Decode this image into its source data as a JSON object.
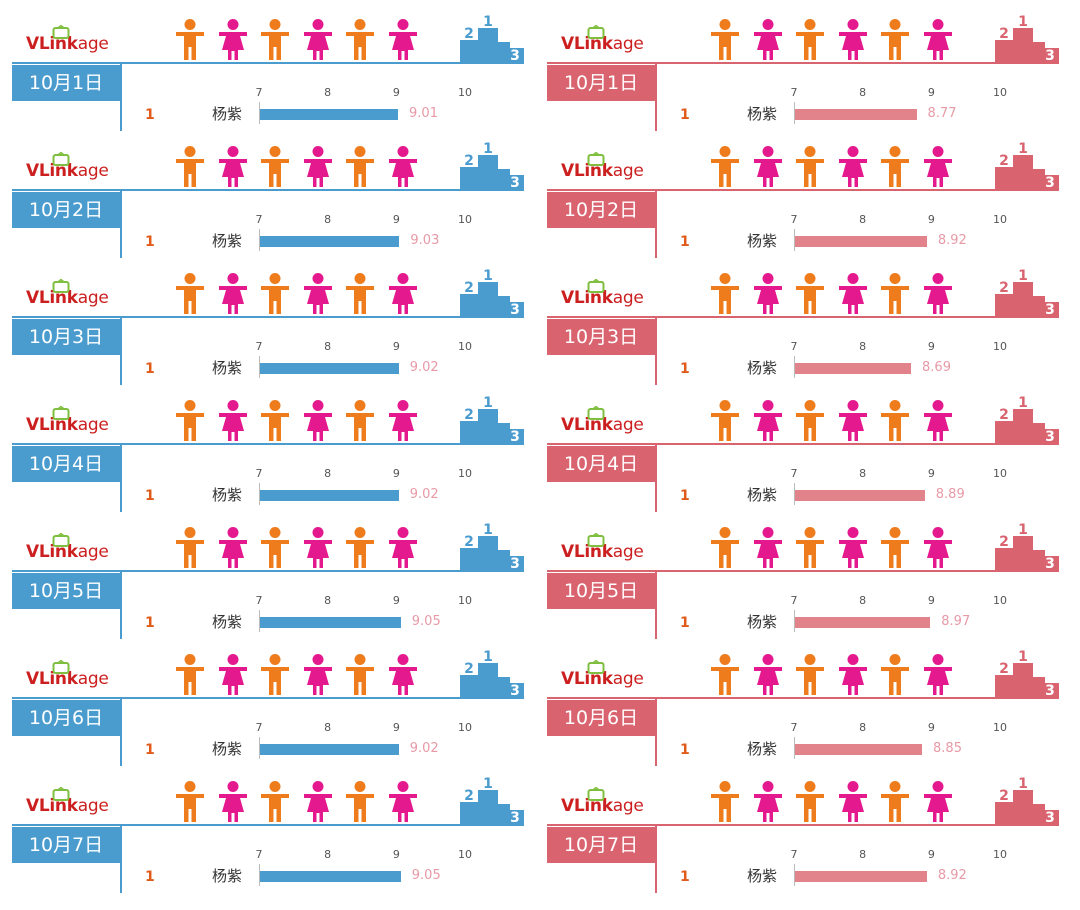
{
  "brand": {
    "logo_text": "VLinkage",
    "logo_text_part1": "VLink",
    "logo_text_part2": "age"
  },
  "colors": {
    "left_accent": "#4a9ccf",
    "right_accent": "#d9646f",
    "right_bar": "#e2838c",
    "man": "#ee7c1c",
    "woman": "#e5198e",
    "logo_red": "#cc1f1f",
    "logo_green": "#7fbf3f",
    "value_text": "#e79aa6"
  },
  "icons": {
    "people": [
      "man-icon",
      "woman-icon",
      "man-icon",
      "woman-icon",
      "man-icon",
      "woman-icon"
    ],
    "podium": "podium-icon",
    "logo_badge": "tv-icon"
  },
  "chart_data": [
    {
      "type": "bar",
      "theme": "blue",
      "xlim": [
        7,
        10
      ],
      "xticks": [
        "7",
        "8",
        "9",
        "10"
      ],
      "panels": [
        {
          "date": "10月1日",
          "rank": "1",
          "name": "杨紫",
          "value": 9.01
        },
        {
          "date": "10月2日",
          "rank": "1",
          "name": "杨紫",
          "value": 9.03
        },
        {
          "date": "10月3日",
          "rank": "1",
          "name": "杨紫",
          "value": 9.02
        },
        {
          "date": "10月4日",
          "rank": "1",
          "name": "杨紫",
          "value": 9.02
        },
        {
          "date": "10月5日",
          "rank": "1",
          "name": "杨紫",
          "value": 9.05
        },
        {
          "date": "10月6日",
          "rank": "1",
          "name": "杨紫",
          "value": 9.02
        },
        {
          "date": "10月7日",
          "rank": "1",
          "name": "杨紫",
          "value": 9.05
        }
      ]
    },
    {
      "type": "bar",
      "theme": "red",
      "xlim": [
        7,
        10
      ],
      "xticks": [
        "7",
        "8",
        "9",
        "10"
      ],
      "panels": [
        {
          "date": "10月1日",
          "rank": "1",
          "name": "杨紫",
          "value": 8.77
        },
        {
          "date": "10月2日",
          "rank": "1",
          "name": "杨紫",
          "value": 8.92
        },
        {
          "date": "10月3日",
          "rank": "1",
          "name": "杨紫",
          "value": 8.69
        },
        {
          "date": "10月4日",
          "rank": "1",
          "name": "杨紫",
          "value": 8.89
        },
        {
          "date": "10月5日",
          "rank": "1",
          "name": "杨紫",
          "value": 8.97
        },
        {
          "date": "10月6日",
          "rank": "1",
          "name": "杨紫",
          "value": 8.85
        },
        {
          "date": "10月7日",
          "rank": "1",
          "name": "杨紫",
          "value": 8.92
        }
      ]
    }
  ]
}
